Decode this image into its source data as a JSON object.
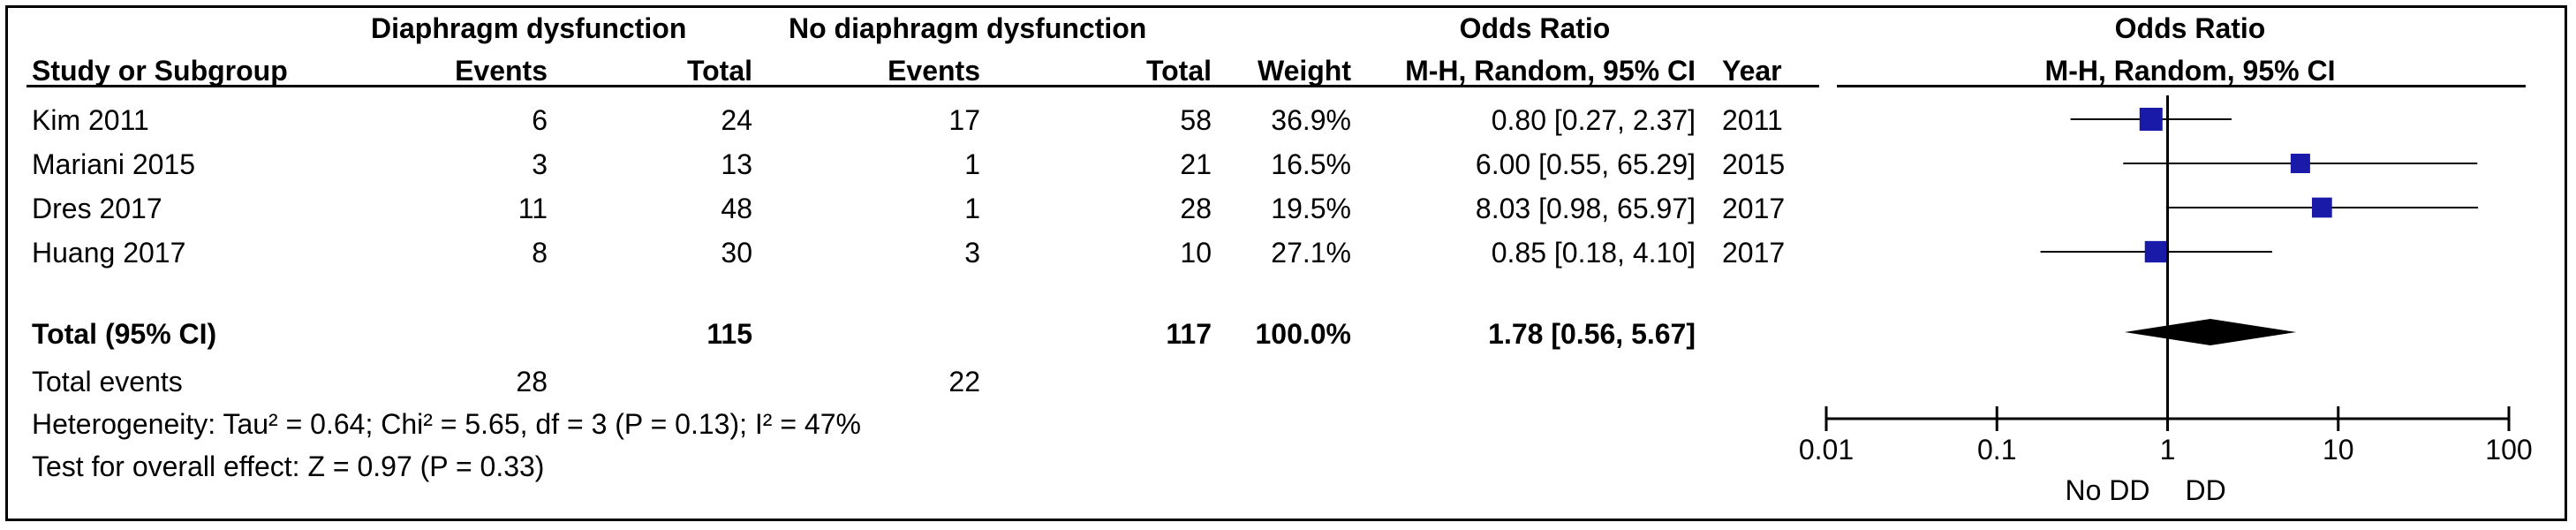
{
  "chart_data": {
    "type": "forest",
    "headers": {
      "group1": "Diaphragm dysfunction",
      "group2": "No diaphragm dysfunction",
      "study": "Study or Subgroup",
      "events": "Events",
      "total": "Total",
      "weight": "Weight",
      "or_title": "Odds Ratio",
      "or_method": "M-H, Random, 95% CI",
      "year": "Year",
      "plot_title": "Odds Ratio",
      "plot_method": "M-H, Random, 95% CI"
    },
    "studies": [
      {
        "study": "Kim 2011",
        "events1": "6",
        "total1": "24",
        "events2": "17",
        "total2": "58",
        "weight": "36.9%",
        "ci_text": "0.80 [0.27, 2.37]",
        "year": "2011",
        "or": 0.8,
        "lo": 0.27,
        "hi": 2.37,
        "w": 36.9
      },
      {
        "study": "Mariani 2015",
        "events1": "3",
        "total1": "13",
        "events2": "1",
        "total2": "21",
        "weight": "16.5%",
        "ci_text": "6.00 [0.55, 65.29]",
        "year": "2015",
        "or": 6.0,
        "lo": 0.55,
        "hi": 65.29,
        "w": 16.5
      },
      {
        "study": "Dres 2017",
        "events1": "11",
        "total1": "48",
        "events2": "1",
        "total2": "28",
        "weight": "19.5%",
        "ci_text": "8.03 [0.98, 65.97]",
        "year": "2017",
        "or": 8.03,
        "lo": 0.98,
        "hi": 65.97,
        "w": 19.5
      },
      {
        "study": "Huang 2017",
        "events1": "8",
        "total1": "30",
        "events2": "3",
        "total2": "10",
        "weight": "27.1%",
        "ci_text": "0.85 [0.18, 4.10]",
        "year": "2017",
        "or": 0.85,
        "lo": 0.18,
        "hi": 4.1,
        "w": 27.1
      }
    ],
    "total": {
      "label": "Total (95% CI)",
      "total1": "115",
      "total2": "117",
      "weight": "100.0%",
      "ci_text": "1.78 [0.56, 5.67]",
      "or": 1.78,
      "lo": 0.56,
      "hi": 5.67
    },
    "total_events": {
      "label": "Total events",
      "events1": "28",
      "events2": "22"
    },
    "heterogeneity": "Heterogeneity: Tau² = 0.64; Chi² = 5.65, df = 3 (P = 0.13); I² = 47%",
    "overall_effect": "Test for overall effect: Z = 0.97 (P = 0.33)",
    "axis": {
      "scale": "log",
      "xlim": [
        0.01,
        100
      ],
      "ticks": [
        0.01,
        0.1,
        1,
        10,
        100
      ],
      "tick_labels": [
        "0.01",
        "0.1",
        "1",
        "10",
        "100"
      ],
      "left_label": "No DD",
      "right_label": "DD"
    },
    "colors": {
      "marker": "#1a1aa8",
      "diamond": "#000000",
      "line": "#000000"
    }
  }
}
